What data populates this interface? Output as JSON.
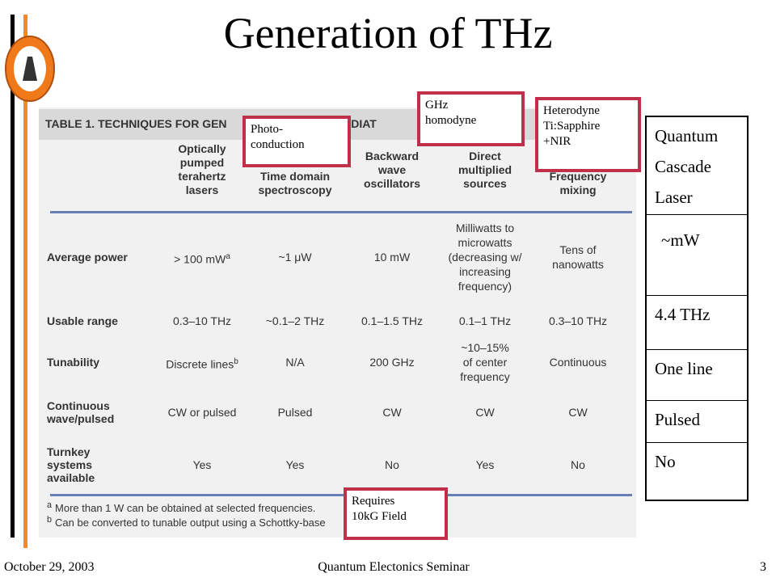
{
  "title": "Generation of THz",
  "table": {
    "caption_parts": [
      "TABLE 1. TECHNIQUES FOR GEN",
      "TZ RADIAT"
    ],
    "columns": [
      "Optically\npumped\nterahertz\nlasers",
      "Time domain\nspectroscopy",
      "Backward\nwave\noscillators",
      "Direct\nmultiplied\nsources",
      "Frequency\nmixing"
    ],
    "rows": [
      {
        "label": "Average power",
        "cells": [
          {
            "text": "> 100 mW",
            "sup": "a"
          },
          "~1 μW",
          "10 mW",
          "Milliwatts to\nmicrowatts\n(decreasing w/\nincreasing\nfrequency)",
          "Tens of\nnanowatts"
        ]
      },
      {
        "label": "Usable range",
        "cells": [
          "0.3–10 THz",
          "~0.1–2 THz",
          "0.1–1.5 THz",
          "0.1–1 THz",
          "0.3–10 THz"
        ]
      },
      {
        "label": "Tunability",
        "cells": [
          {
            "text": "Discrete lines",
            "sup": "b"
          },
          "N/A",
          "200 GHz",
          "~10–15%\nof center\nfrequency",
          "Continuous"
        ]
      },
      {
        "label": "Continuous\nwave/pulsed",
        "cells": [
          "CW or pulsed",
          "Pulsed",
          "CW",
          "CW",
          "CW"
        ]
      },
      {
        "label": "Turnkey\nsystems\navailable",
        "cells": [
          "Yes",
          "Yes",
          "No",
          "Yes",
          "No"
        ]
      }
    ],
    "footnotes": [
      {
        "mark": "a",
        "text": "More than 1 W can be obtained at selected frequencies."
      },
      {
        "mark": "b",
        "text": "Can be converted to tunable output using a Schottky-base"
      }
    ]
  },
  "side_table": [
    "Quantum\nCascade\nLaser",
    "~mW",
    "4.4 THz",
    "One line",
    "Pulsed",
    "No"
  ],
  "callouts": [
    "Photo-\nconduction",
    "GHz\nhomodyne",
    "Heterodyne\nTi:Sapphire\n+NIR",
    "Requires\n10kG Field"
  ],
  "footer": {
    "date": "October 29, 2003",
    "event": "Quantum Electonics Seminar",
    "page": "3"
  }
}
